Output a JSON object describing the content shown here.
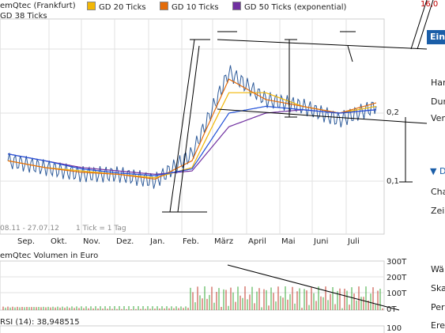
{
  "legend": [
    {
      "label": "emQtec (Frankfurt)",
      "color": "#2e5b9a"
    },
    {
      "label": "GD 20 Ticks",
      "color": "#f2b705"
    },
    {
      "label": "GD 10 Ticks",
      "color": "#e46c0a"
    },
    {
      "label": "GD 50 Ticks (exponential)",
      "color": "#7030a0"
    },
    {
      "label": "GD 38 Ticks",
      "color": "#1f4fd8"
    }
  ],
  "price_labels": {
    "top": "16,0",
    "mid": "0,2",
    "low": "0,1"
  },
  "date_range": "08.11 - 27.07.12",
  "tick_info": "1 Tick = 1 Tag",
  "months": [
    "Sep.",
    "Okt.",
    "Nov.",
    "Dez.",
    "Jan.",
    "Feb.",
    "März",
    "April",
    "Mai",
    "Juni",
    "Juli"
  ],
  "volume": {
    "title": "emQtec Volumen in Euro",
    "ticks": [
      "300T",
      "200T",
      "100T",
      "0T"
    ]
  },
  "rsi": {
    "title": "RSI (14): 38,948515",
    "tick": "100"
  },
  "sidebar": {
    "button": "Ein",
    "items": [
      "Han",
      "Dur",
      "Ver"
    ],
    "section": "▼ D",
    "items2": [
      "Cha",
      "Zei"
    ],
    "items3": [
      "Wä",
      "Ska",
      "Per",
      "Ere"
    ]
  },
  "chart_data": {
    "type": "line",
    "title": "",
    "xlabel": "",
    "ylabel": "",
    "x": [
      "Sep.",
      "Okt.",
      "Nov.",
      "Dez.",
      "Jan.",
      "Feb.",
      "März",
      "April",
      "Mai",
      "Juni",
      "Juli"
    ],
    "series": [
      {
        "name": "emQtec (Frankfurt)",
        "values": [
          0.13,
          0.12,
          0.11,
          0.11,
          0.1,
          0.14,
          0.26,
          0.22,
          0.21,
          0.19,
          0.21
        ]
      },
      {
        "name": "GD 20 Ticks",
        "values": [
          0.13,
          0.12,
          0.115,
          0.11,
          0.105,
          0.12,
          0.23,
          0.23,
          0.21,
          0.2,
          0.21
        ]
      },
      {
        "name": "GD 10 Ticks",
        "values": [
          0.13,
          0.12,
          0.113,
          0.11,
          0.103,
          0.13,
          0.25,
          0.22,
          0.21,
          0.2,
          0.215
        ]
      },
      {
        "name": "GD 50 Ticks (exponential)",
        "values": [
          0.14,
          0.13,
          0.12,
          0.115,
          0.11,
          0.115,
          0.18,
          0.2,
          0.205,
          0.2,
          0.205
        ]
      },
      {
        "name": "GD 38 Ticks",
        "values": [
          0.14,
          0.13,
          0.118,
          0.112,
          0.108,
          0.118,
          0.2,
          0.21,
          0.205,
          0.2,
          0.205
        ]
      }
    ],
    "volume_ticks": [
      "0T",
      "100T",
      "200T",
      "300T"
    ],
    "grid": true
  }
}
